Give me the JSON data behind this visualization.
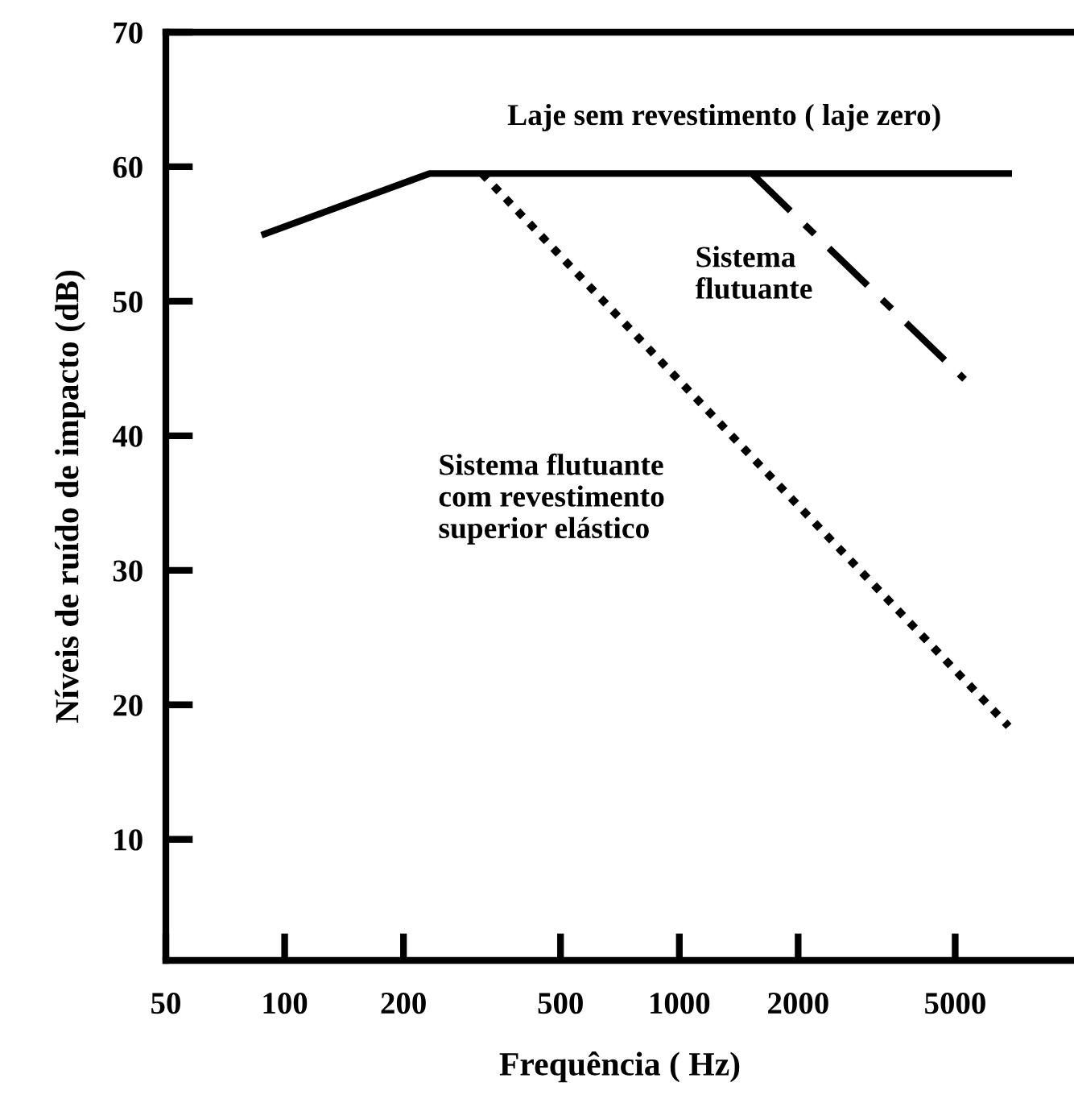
{
  "chart_data": {
    "type": "line",
    "xlabel": "Frequência ( Hz)",
    "ylabel": "Níveis de ruído de impacto (dB)",
    "log": "x",
    "xlim": [
      50,
      10000
    ],
    "ylim": [
      1,
      70
    ],
    "xticks": [
      50,
      100,
      200,
      500,
      1000,
      2000,
      5000
    ],
    "yticks": [
      10,
      20,
      30,
      40,
      50,
      60,
      70
    ],
    "grid": false,
    "legend": false,
    "marker": "none",
    "series": [
      {
        "x": [
          89,
          233,
          6830
        ],
        "values": [
          55,
          59.5,
          59.5
        ],
        "color": "#000000",
        "line_style": "solid"
      },
      {
        "x": [
          316,
          6830
        ],
        "values": [
          59.5,
          18.4
        ],
        "color": "#000000",
        "line_style": "dotted"
      },
      {
        "x": [
          1526,
          5280
        ],
        "values": [
          59.5,
          44.2
        ],
        "color": "#000000",
        "line_style": "dashdot"
      }
    ],
    "annotations": [
      "Laje sem revestimento ( laje zero)",
      "Sistema\nflutuante",
      "Sistema flutuante\ncom revestimento\nsuperior elástico"
    ]
  }
}
